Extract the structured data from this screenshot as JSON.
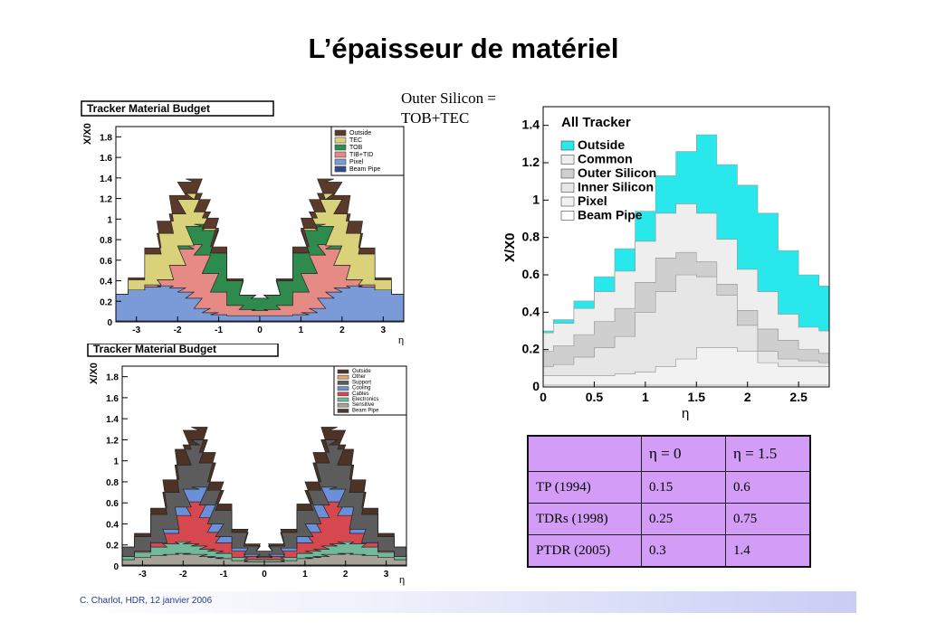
{
  "title": "L’épaisseur de matériel",
  "note": [
    "Outer Silicon =",
    "TOB+TEC"
  ],
  "footer": "C. Charlot, HDR, 12 janvier 2006",
  "table": {
    "headers": [
      "",
      "η = 0",
      "η = 1.5"
    ],
    "rows": [
      [
        "TP (1994)",
        "0.15",
        "0.6"
      ],
      [
        "TDRs (1998)",
        "0.25",
        "0.75"
      ],
      [
        "PTDR (2005)",
        "0.3",
        "1.4"
      ]
    ]
  },
  "chart_data": [
    {
      "type": "area",
      "title": "Tracker Material Budget",
      "xlabel": "η",
      "ylabel": "X/X0",
      "xlim": [
        -3.5,
        3.5
      ],
      "ylim": [
        0,
        1.9
      ],
      "xticks": [
        "-3",
        "-2",
        "-1",
        "0",
        "1",
        "2",
        "3"
      ],
      "yticks": [
        "0",
        "0.2",
        "0.4",
        "0.6",
        "0.8",
        "1",
        "1.2",
        "1.4",
        "1.6",
        "1.8"
      ],
      "legend_position": "top-right",
      "x": [
        -3.4,
        -3.0,
        -2.6,
        -2.3,
        -2.0,
        -1.8,
        -1.6,
        -1.4,
        -1.2,
        -1.0,
        -0.6,
        -0.3,
        0.0,
        0.3,
        0.6,
        1.0,
        1.2,
        1.4,
        1.6,
        1.8,
        2.0,
        2.3,
        2.6,
        3.0,
        3.4
      ],
      "series": [
        {
          "name": "Beam Pipe",
          "color": "#2e4a88",
          "values": [
            0.01,
            0.01,
            0.01,
            0.01,
            0.01,
            0.01,
            0.01,
            0.01,
            0.01,
            0.01,
            0.01,
            0.01,
            0.01,
            0.01,
            0.01,
            0.01,
            0.01,
            0.01,
            0.01,
            0.01,
            0.01,
            0.01,
            0.01,
            0.01,
            0.01
          ]
        },
        {
          "name": "Pixel",
          "color": "#7b9ad8",
          "values": [
            0.26,
            0.3,
            0.33,
            0.34,
            0.32,
            0.28,
            0.22,
            0.12,
            0.08,
            0.06,
            0.05,
            0.05,
            0.05,
            0.05,
            0.05,
            0.06,
            0.08,
            0.12,
            0.22,
            0.28,
            0.32,
            0.34,
            0.33,
            0.3,
            0.26
          ]
        },
        {
          "name": "TIB+TID",
          "color": "#e68a86",
          "values": [
            0,
            0,
            0.02,
            0.06,
            0.22,
            0.42,
            0.52,
            0.52,
            0.38,
            0.22,
            0.1,
            0.06,
            0.05,
            0.06,
            0.1,
            0.22,
            0.38,
            0.52,
            0.52,
            0.42,
            0.22,
            0.06,
            0.02,
            0,
            0
          ]
        },
        {
          "name": "TOB",
          "color": "#2f8a4e",
          "values": [
            0,
            0,
            0,
            0,
            0,
            0.03,
            0.18,
            0.3,
            0.42,
            0.38,
            0.24,
            0.14,
            0.12,
            0.14,
            0.24,
            0.38,
            0.42,
            0.3,
            0.18,
            0.03,
            0,
            0,
            0,
            0,
            0
          ]
        },
        {
          "name": "TEC",
          "color": "#d9d27a",
          "values": [
            0,
            0.1,
            0.3,
            0.45,
            0.5,
            0.45,
            0.32,
            0.12,
            0.02,
            0,
            0,
            0,
            0,
            0,
            0,
            0,
            0.02,
            0.12,
            0.32,
            0.45,
            0.5,
            0.45,
            0.3,
            0.1,
            0
          ]
        },
        {
          "name": "Outside",
          "color": "#5a3a2a",
          "values": [
            0,
            0.02,
            0.06,
            0.12,
            0.18,
            0.17,
            0.14,
            0.12,
            0.1,
            0.06,
            0.02,
            0,
            0,
            0,
            0.02,
            0.06,
            0.1,
            0.12,
            0.14,
            0.17,
            0.18,
            0.12,
            0.06,
            0.02,
            0
          ]
        }
      ]
    },
    {
      "type": "area",
      "title": "Tracker Material Budget",
      "xlabel": "η",
      "ylabel": "X/X0",
      "xlim": [
        -3.5,
        3.5
      ],
      "ylim": [
        0,
        1.9
      ],
      "xticks": [
        "-3",
        "-2",
        "-1",
        "0",
        "1",
        "2",
        "3"
      ],
      "yticks": [
        "0",
        "0.2",
        "0.4",
        "0.6",
        "0.8",
        "1",
        "1.2",
        "1.4",
        "1.6",
        "1.8"
      ],
      "legend_position": "top-right",
      "x": [
        -3.4,
        -3.0,
        -2.6,
        -2.3,
        -2.0,
        -1.8,
        -1.6,
        -1.4,
        -1.2,
        -1.0,
        -0.6,
        -0.3,
        0.0,
        0.3,
        0.6,
        1.0,
        1.2,
        1.4,
        1.6,
        1.8,
        2.0,
        2.3,
        2.6,
        3.0,
        3.4
      ],
      "series": [
        {
          "name": "Beam Pipe",
          "color": "#4a3a32",
          "values": [
            0.01,
            0.01,
            0.01,
            0.01,
            0.01,
            0.01,
            0.01,
            0.01,
            0.01,
            0.01,
            0.01,
            0.01,
            0.01,
            0.01,
            0.01,
            0.01,
            0.01,
            0.01,
            0.01,
            0.01,
            0.01,
            0.01,
            0.01,
            0.01,
            0.01
          ]
        },
        {
          "name": "Sensitive",
          "color": "#a8a39a",
          "values": [
            0.05,
            0.07,
            0.09,
            0.1,
            0.11,
            0.1,
            0.1,
            0.08,
            0.07,
            0.06,
            0.04,
            0.03,
            0.03,
            0.03,
            0.04,
            0.06,
            0.07,
            0.08,
            0.1,
            0.1,
            0.11,
            0.1,
            0.09,
            0.07,
            0.05
          ]
        },
        {
          "name": "Electronics",
          "color": "#70b99a",
          "values": [
            0.03,
            0.05,
            0.08,
            0.1,
            0.11,
            0.1,
            0.08,
            0.07,
            0.06,
            0.05,
            0.03,
            0.02,
            0.02,
            0.02,
            0.03,
            0.05,
            0.06,
            0.07,
            0.08,
            0.1,
            0.11,
            0.1,
            0.08,
            0.05,
            0.03
          ]
        },
        {
          "name": "Cables",
          "color": "#d6484f",
          "values": [
            0,
            0.01,
            0.04,
            0.1,
            0.25,
            0.4,
            0.42,
            0.3,
            0.18,
            0.1,
            0.06,
            0.03,
            0.02,
            0.03,
            0.06,
            0.1,
            0.18,
            0.3,
            0.42,
            0.4,
            0.25,
            0.1,
            0.04,
            0.01,
            0
          ]
        },
        {
          "name": "Cooling",
          "color": "#6b8fd8",
          "values": [
            0,
            0,
            0.01,
            0.04,
            0.08,
            0.12,
            0.14,
            0.12,
            0.08,
            0.06,
            0.03,
            0.02,
            0.01,
            0.02,
            0.03,
            0.06,
            0.08,
            0.12,
            0.14,
            0.12,
            0.08,
            0.04,
            0.01,
            0,
            0
          ]
        },
        {
          "name": "Support",
          "color": "#5c5c5c",
          "values": [
            0.09,
            0.14,
            0.26,
            0.35,
            0.4,
            0.42,
            0.45,
            0.4,
            0.32,
            0.25,
            0.15,
            0.08,
            0.05,
            0.08,
            0.15,
            0.25,
            0.32,
            0.4,
            0.45,
            0.42,
            0.4,
            0.35,
            0.26,
            0.14,
            0.09
          ]
        },
        {
          "name": "Other",
          "color": "#e3a86e",
          "values": [
            0,
            0,
            0,
            0,
            0,
            0,
            0,
            0,
            0,
            0,
            0,
            0,
            0,
            0,
            0,
            0,
            0,
            0,
            0,
            0,
            0,
            0,
            0,
            0,
            0
          ]
        },
        {
          "name": "Outside",
          "color": "#4d3326",
          "values": [
            0,
            0.03,
            0.06,
            0.12,
            0.15,
            0.14,
            0.12,
            0.1,
            0.08,
            0.06,
            0.03,
            0.02,
            0,
            0.02,
            0.03,
            0.06,
            0.08,
            0.1,
            0.12,
            0.14,
            0.15,
            0.12,
            0.06,
            0.03,
            0
          ]
        }
      ]
    },
    {
      "type": "area",
      "title": "All Tracker",
      "xlabel": "η",
      "ylabel": "X/X0",
      "xlim": [
        0,
        2.8
      ],
      "ylim": [
        0,
        1.5
      ],
      "xticks": [
        "0",
        "0.5",
        "1",
        "1.5",
        "2",
        "2.5"
      ],
      "yticks": [
        "0",
        "0.2",
        "0.4",
        "0.6",
        "0.8",
        "1",
        "1.2",
        "1.4"
      ],
      "legend_position": "top-left",
      "x": [
        0.0,
        0.2,
        0.4,
        0.6,
        0.8,
        1.0,
        1.2,
        1.4,
        1.6,
        1.8,
        2.0,
        2.2,
        2.4,
        2.6,
        2.8
      ],
      "series": [
        {
          "name": "Beam Pipe",
          "color": "#ffffff",
          "values": [
            0.01,
            0.01,
            0.01,
            0.01,
            0.01,
            0.01,
            0.01,
            0.01,
            0.01,
            0.01,
            0.01,
            0.01,
            0.01,
            0.01,
            0.01
          ]
        },
        {
          "name": "Pixel",
          "color": "#f2f2f2",
          "values": [
            0.05,
            0.05,
            0.05,
            0.05,
            0.06,
            0.07,
            0.1,
            0.14,
            0.2,
            0.2,
            0.18,
            0.12,
            0.1,
            0.1,
            0.1
          ]
        },
        {
          "name": "Inner Silicon",
          "color": "#e6e6e6",
          "values": [
            0.05,
            0.06,
            0.1,
            0.15,
            0.2,
            0.32,
            0.4,
            0.45,
            0.38,
            0.28,
            0.14,
            0.06,
            0.04,
            0.03,
            0.02
          ]
        },
        {
          "name": "Outer Silicon",
          "color": "#cfcfcf",
          "values": [
            0.08,
            0.1,
            0.12,
            0.14,
            0.15,
            0.16,
            0.18,
            0.12,
            0.08,
            0.06,
            0.08,
            0.12,
            0.1,
            0.06,
            0.05
          ]
        },
        {
          "name": "Common",
          "color": "#eeeeee",
          "values": [
            0.1,
            0.12,
            0.14,
            0.16,
            0.2,
            0.22,
            0.24,
            0.26,
            0.26,
            0.24,
            0.22,
            0.2,
            0.14,
            0.12,
            0.12
          ]
        },
        {
          "name": "Outside",
          "color": "#28e8ec",
          "values": [
            0.01,
            0.02,
            0.04,
            0.08,
            0.12,
            0.16,
            0.2,
            0.28,
            0.42,
            0.4,
            0.45,
            0.42,
            0.34,
            0.28,
            0.24
          ]
        }
      ]
    }
  ]
}
